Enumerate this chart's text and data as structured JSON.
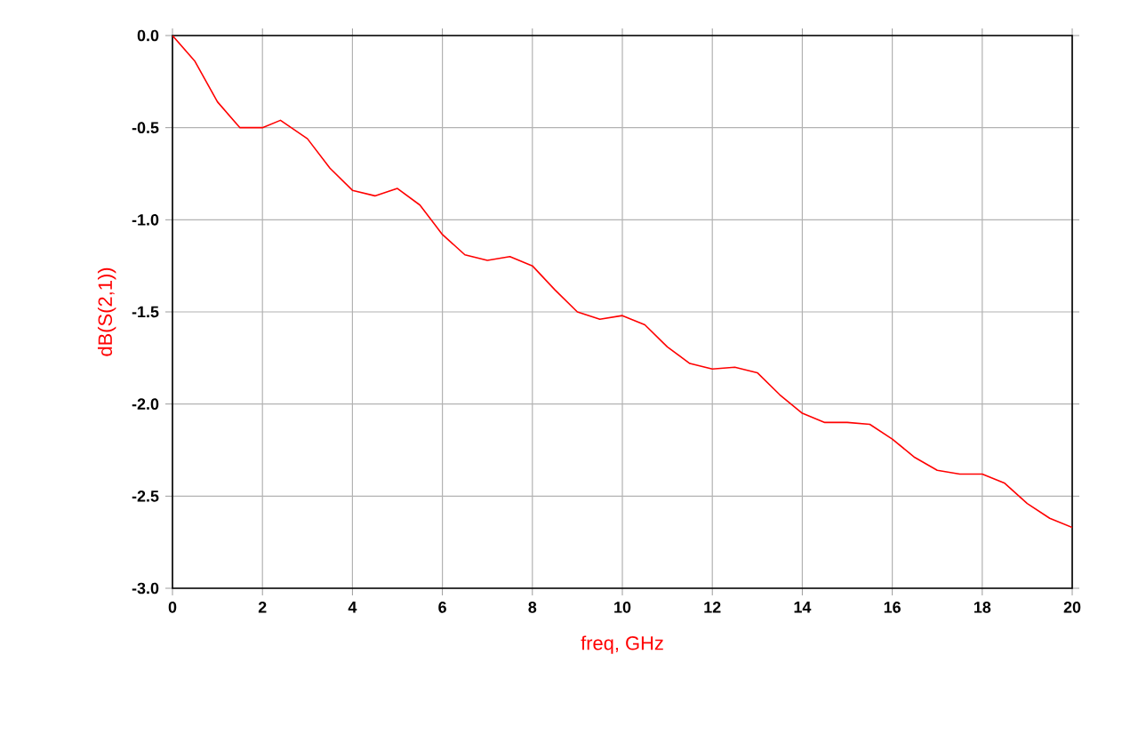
{
  "chart_data": {
    "type": "line",
    "xlabel": "freq, GHz",
    "ylabel": "dB(S(2,1))",
    "xlim": [
      0,
      20
    ],
    "ylim": [
      -3,
      0
    ],
    "xticks": [
      0,
      2,
      4,
      6,
      8,
      10,
      12,
      14,
      16,
      18,
      20
    ],
    "yticks": [
      {
        "value": -3,
        "label": "-3.0"
      },
      {
        "value": -2.5,
        "label": "-2.5"
      },
      {
        "value": -2,
        "label": "-2.0"
      },
      {
        "value": -1.5,
        "label": "-1.5"
      },
      {
        "value": -1,
        "label": "-1.0"
      },
      {
        "value": -0.5,
        "label": "-0.5"
      },
      {
        "value": 0,
        "label": "0.0"
      }
    ],
    "grid": true,
    "marker": "none",
    "line_style": "solid",
    "series": [
      {
        "color": "#ff0000",
        "x": [
          0,
          0.5,
          1,
          1.5,
          2,
          2.4,
          3,
          3.5,
          4,
          4.5,
          5,
          5.5,
          6,
          6.5,
          7,
          7.5,
          8,
          8.5,
          9,
          9.5,
          10,
          10.5,
          11,
          11.5,
          12,
          12.5,
          13,
          13.5,
          14,
          14.5,
          15,
          15.5,
          16,
          16.5,
          17,
          17.5,
          18,
          18.5,
          19,
          19.5,
          20
        ],
        "values": [
          0,
          -0.14,
          -0.36,
          -0.5,
          -0.5,
          -0.46,
          -0.56,
          -0.72,
          -0.84,
          -0.87,
          -0.83,
          -0.92,
          -1.08,
          -1.19,
          -1.22,
          -1.2,
          -1.25,
          -1.38,
          -1.5,
          -1.54,
          -1.52,
          -1.57,
          -1.69,
          -1.78,
          -1.81,
          -1.8,
          -1.83,
          -1.95,
          -2.05,
          -2.1,
          -2.1,
          -2.11,
          -2.19,
          -2.29,
          -2.36,
          -2.38,
          -2.38,
          -2.43,
          -2.54,
          -2.62,
          -2.67
        ]
      }
    ]
  }
}
